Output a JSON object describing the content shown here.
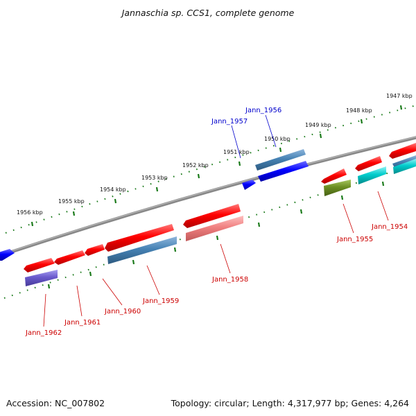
{
  "title": "Jannaschia sp. CCS1, complete genome",
  "footer": {
    "accession": "Accession: NC_007802",
    "summary": "Topology: circular; Length: 4,317,977 bp; Genes: 4,264"
  },
  "ruler": {
    "labels": [
      "1956 kbp",
      "1955 kbp",
      "1954 kbp",
      "1953 kbp",
      "1952 kbp",
      "1951 kbp",
      "1950 kbp",
      "1949 kbp",
      "1948 kbp",
      "1947 kbp"
    ]
  },
  "genes": {
    "labels": [
      {
        "name": "Jann_1956",
        "color": "#0000cc"
      },
      {
        "name": "Jann_1957",
        "color": "#0000cc"
      },
      {
        "name": "Jann_1954",
        "color": "#cc0000"
      },
      {
        "name": "Jann_1955",
        "color": "#cc0000"
      },
      {
        "name": "Jann_1958",
        "color": "#cc0000"
      },
      {
        "name": "Jann_1959",
        "color": "#cc0000"
      },
      {
        "name": "Jann_1960",
        "color": "#cc0000"
      },
      {
        "name": "Jann_1961",
        "color": "#cc0000"
      },
      {
        "name": "Jann_1962",
        "color": "#cc0000"
      }
    ]
  },
  "colors": {
    "backbone": "#7a7a7a",
    "ticks": "#1a7a1a",
    "forward_gene": "#ff0000",
    "reverse_gene": "#0000ff",
    "rna_steelblue": "#4682b4",
    "pink": "#f08080",
    "olive": "#6b8e23",
    "cyan": "#00cccc",
    "purple": "#6a5acd"
  }
}
